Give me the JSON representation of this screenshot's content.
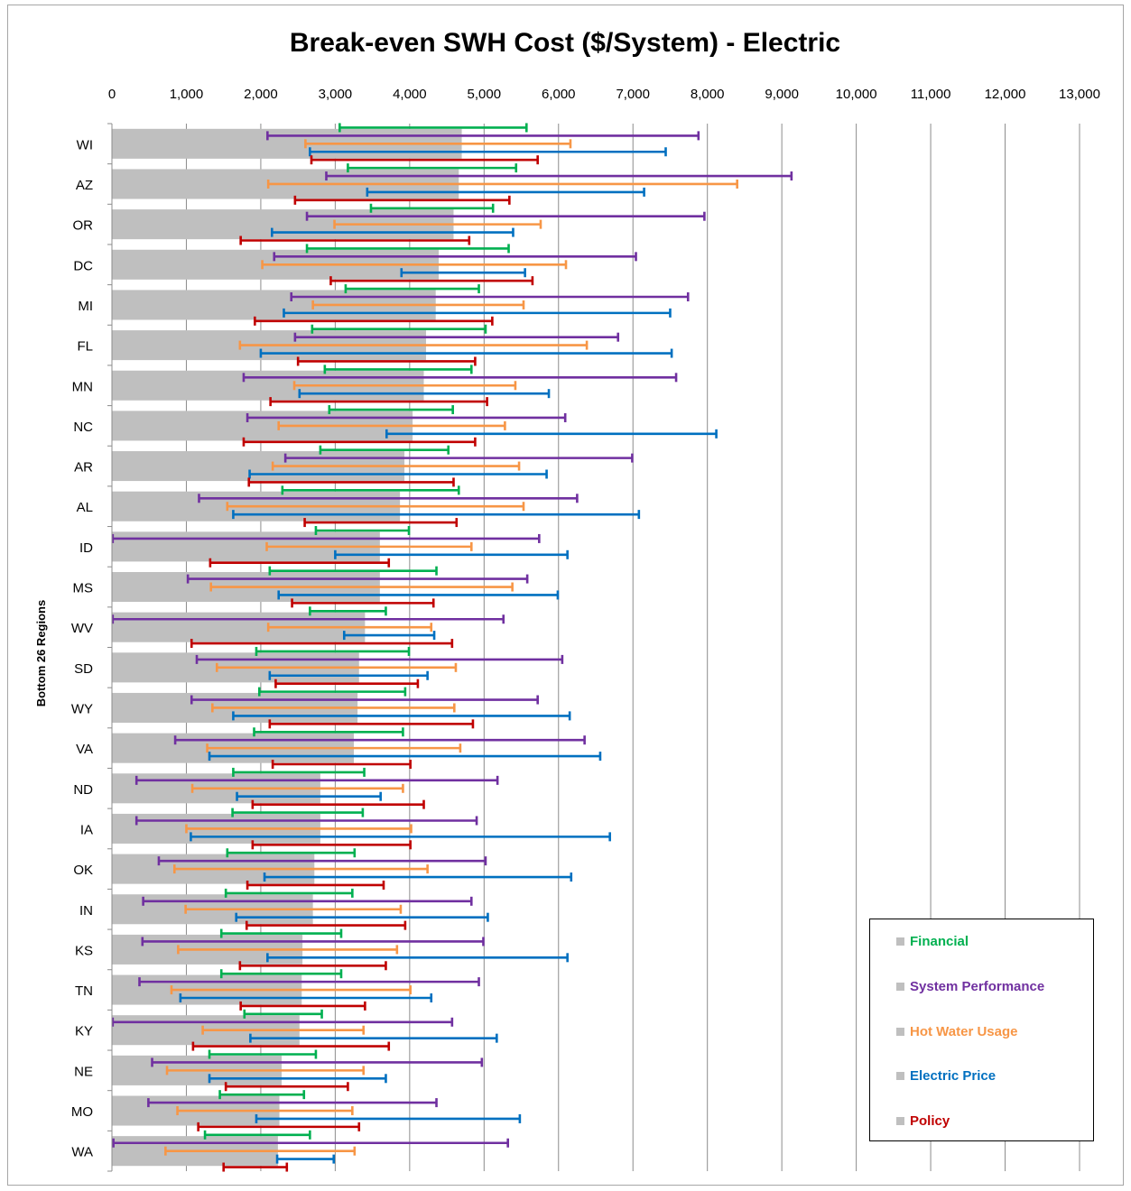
{
  "chart_data": {
    "type": "bar",
    "title": "Break-even SWH Cost ($/System) - Electric",
    "ylabel": "Bottom 26 Regions",
    "xlim": [
      0,
      13000
    ],
    "xticks": [
      0,
      1000,
      2000,
      3000,
      4000,
      5000,
      6000,
      7000,
      8000,
      9000,
      10000,
      11000,
      12000,
      13000
    ],
    "xtick_labels": [
      "0",
      "1,000",
      "2,000",
      "3,000",
      "4,000",
      "5,000",
      "6,000",
      "7,000",
      "8,000",
      "9,000",
      "10,000",
      "11,000",
      "12,000",
      "13,000"
    ],
    "grid": "vertical",
    "legend_position": "bottom-right",
    "bar_color": "#bfbfbf",
    "categories": [
      "WI",
      "AZ",
      "OR",
      "DC",
      "MI",
      "FL",
      "MN",
      "NC",
      "AR",
      "AL",
      "ID",
      "MS",
      "WV",
      "SD",
      "WY",
      "VA",
      "ND",
      "IA",
      "OK",
      "IN",
      "KS",
      "TN",
      "KY",
      "NE",
      "MO",
      "WA"
    ],
    "values": [
      4700,
      4660,
      4590,
      4390,
      4350,
      4220,
      4190,
      4040,
      3930,
      3870,
      3600,
      3600,
      3400,
      3320,
      3300,
      3250,
      2800,
      2800,
      2720,
      2700,
      2560,
      2550,
      2520,
      2280,
      2250,
      2230
    ],
    "series": [
      {
        "name": "Financial",
        "color": "#00b050",
        "ranges": [
          [
            3060,
            5570
          ],
          [
            3170,
            5430
          ],
          [
            3480,
            5120
          ],
          [
            2620,
            5330
          ],
          [
            3140,
            4930
          ],
          [
            2690,
            5020
          ],
          [
            2860,
            4830
          ],
          [
            2920,
            4580
          ],
          [
            2800,
            4520
          ],
          [
            2290,
            4660
          ],
          [
            2740,
            3990
          ],
          [
            2120,
            4360
          ],
          [
            2660,
            3680
          ],
          [
            1940,
            3990
          ],
          [
            1980,
            3940
          ],
          [
            1910,
            3910
          ],
          [
            1630,
            3390
          ],
          [
            1620,
            3370
          ],
          [
            1550,
            3260
          ],
          [
            1530,
            3230
          ],
          [
            1470,
            3080
          ],
          [
            1470,
            3080
          ],
          [
            1780,
            2820
          ],
          [
            1310,
            2740
          ],
          [
            1450,
            2580
          ],
          [
            1250,
            2660
          ]
        ]
      },
      {
        "name": "System Performance",
        "color": "#7030a0",
        "ranges": [
          [
            2090,
            7880
          ],
          [
            2880,
            9130
          ],
          [
            2620,
            7960
          ],
          [
            2180,
            7040
          ],
          [
            2410,
            7740
          ],
          [
            2460,
            6800
          ],
          [
            1770,
            7580
          ],
          [
            1820,
            6090
          ],
          [
            2330,
            6990
          ],
          [
            1170,
            6250
          ],
          [
            10,
            5740
          ],
          [
            1020,
            5580
          ],
          [
            10,
            5260
          ],
          [
            1140,
            6050
          ],
          [
            1070,
            5720
          ],
          [
            850,
            6350
          ],
          [
            330,
            5180
          ],
          [
            330,
            4900
          ],
          [
            630,
            5020
          ],
          [
            420,
            4830
          ],
          [
            410,
            4990
          ],
          [
            370,
            4930
          ],
          [
            10,
            4570
          ],
          [
            540,
            4970
          ],
          [
            490,
            4360
          ],
          [
            20,
            5320
          ]
        ]
      },
      {
        "name": "Hot Water Usage",
        "color": "#f79646",
        "ranges": [
          [
            2600,
            6160
          ],
          [
            2100,
            8400
          ],
          [
            2990,
            5760
          ],
          [
            2020,
            6100
          ],
          [
            2700,
            5530
          ],
          [
            1720,
            6380
          ],
          [
            2450,
            5420
          ],
          [
            2240,
            5280
          ],
          [
            2160,
            5470
          ],
          [
            1550,
            5530
          ],
          [
            2080,
            4830
          ],
          [
            1330,
            5380
          ],
          [
            2100,
            4290
          ],
          [
            1410,
            4620
          ],
          [
            1350,
            4600
          ],
          [
            1280,
            4680
          ],
          [
            1080,
            3910
          ],
          [
            1000,
            4020
          ],
          [
            840,
            4240
          ],
          [
            990,
            3880
          ],
          [
            890,
            3830
          ],
          [
            800,
            4010
          ],
          [
            1220,
            3380
          ],
          [
            740,
            3380
          ],
          [
            880,
            3230
          ],
          [
            720,
            3260
          ]
        ]
      },
      {
        "name": "Electric Price",
        "color": "#0070c0",
        "ranges": [
          [
            2660,
            7440
          ],
          [
            3430,
            7150
          ],
          [
            2150,
            5390
          ],
          [
            3890,
            5550
          ],
          [
            2310,
            7500
          ],
          [
            2000,
            7520
          ],
          [
            2520,
            5870
          ],
          [
            3690,
            8120
          ],
          [
            1850,
            5840
          ],
          [
            1630,
            7080
          ],
          [
            3000,
            6120
          ],
          [
            2240,
            5990
          ],
          [
            3120,
            4330
          ],
          [
            2120,
            4240
          ],
          [
            1630,
            6150
          ],
          [
            1310,
            6560
          ],
          [
            1680,
            3610
          ],
          [
            1060,
            6690
          ],
          [
            2050,
            6170
          ],
          [
            1670,
            5050
          ],
          [
            2090,
            6120
          ],
          [
            920,
            4290
          ],
          [
            1860,
            5170
          ],
          [
            1310,
            3680
          ],
          [
            1940,
            5480
          ],
          [
            2220,
            2980
          ]
        ]
      },
      {
        "name": "Policy",
        "color": "#c00000",
        "ranges": [
          [
            2680,
            5720
          ],
          [
            2460,
            5340
          ],
          [
            1730,
            4800
          ],
          [
            2940,
            5650
          ],
          [
            1920,
            5110
          ],
          [
            2500,
            4880
          ],
          [
            2130,
            5040
          ],
          [
            1770,
            4880
          ],
          [
            1840,
            4590
          ],
          [
            2590,
            4630
          ],
          [
            1320,
            3720
          ],
          [
            2420,
            4320
          ],
          [
            1070,
            4570
          ],
          [
            2200,
            4110
          ],
          [
            2120,
            4850
          ],
          [
            2160,
            4010
          ],
          [
            1890,
            4190
          ],
          [
            1890,
            4010
          ],
          [
            1820,
            3650
          ],
          [
            1810,
            3940
          ],
          [
            1720,
            3680
          ],
          [
            1730,
            3400
          ],
          [
            1090,
            3720
          ],
          [
            1530,
            3170
          ],
          [
            1160,
            3320
          ],
          [
            1500,
            2350
          ]
        ]
      }
    ]
  }
}
